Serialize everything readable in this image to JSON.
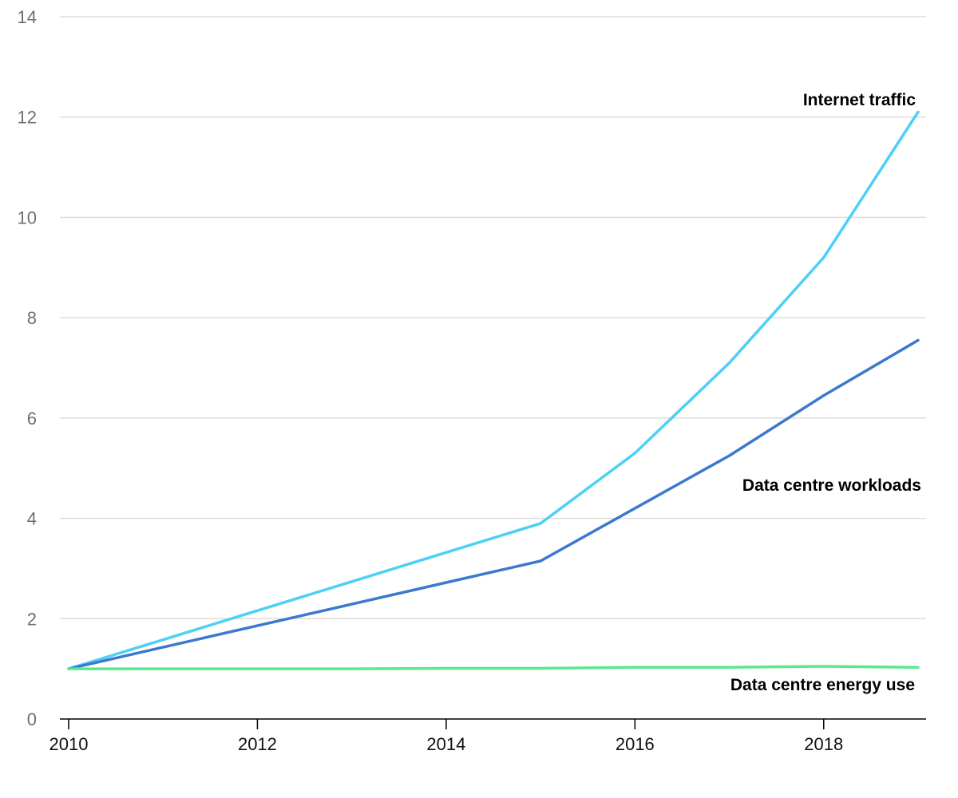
{
  "chart_data": {
    "type": "line",
    "title": "",
    "xlabel": "",
    "ylabel": "",
    "xlim": [
      2010,
      2019
    ],
    "ylim": [
      0,
      14
    ],
    "grid": true,
    "x": [
      2010,
      2011,
      2012,
      2013,
      2014,
      2015,
      2016,
      2017,
      2018,
      2019
    ],
    "x_ticks": [
      "2010",
      "2012",
      "2014",
      "2016",
      "2018"
    ],
    "y_ticks": [
      "0",
      "2",
      "4",
      "6",
      "8",
      "10",
      "12",
      "14"
    ],
    "series": [
      {
        "name": "Internet traffic",
        "color": "#4dd0f5",
        "values": [
          1.0,
          1.58,
          2.16,
          2.74,
          3.32,
          3.9,
          5.3,
          7.1,
          9.2,
          12.1
        ]
      },
      {
        "name": "Data centre workloads",
        "color": "#3c78d0",
        "values": [
          1.0,
          1.43,
          1.86,
          2.29,
          2.72,
          3.15,
          4.2,
          5.25,
          6.45,
          7.55
        ]
      },
      {
        "name": "Data centre energy use",
        "color": "#5ce88d",
        "values": [
          1.0,
          1.0,
          1.0,
          1.0,
          1.01,
          1.01,
          1.03,
          1.03,
          1.05,
          1.03
        ]
      }
    ],
    "legend": "inline-right"
  }
}
